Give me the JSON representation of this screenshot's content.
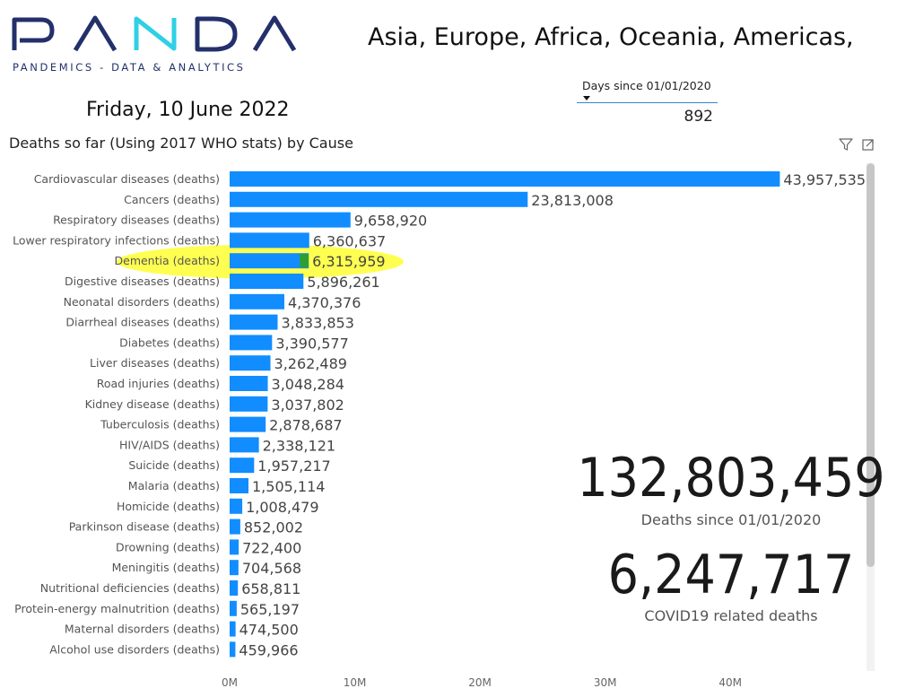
{
  "brand": {
    "letters": [
      "P",
      "A",
      "N",
      "D",
      "A"
    ],
    "tagline": "PANDEMICS - DATA & ANALYTICS",
    "primary_color": "#23306b",
    "accent_color": "#2fd0e6"
  },
  "header": {
    "regions": "Asia, Europe, Africa, Oceania, Americas,",
    "date": "Friday, 10 June 2022"
  },
  "slicer": {
    "label": "Days since 01/01/2020",
    "value": "892"
  },
  "visual": {
    "filter_icon": "filter-icon",
    "focus_icon": "focus-mode-icon"
  },
  "kpis": [
    {
      "value": "132,803,459",
      "label": "Deaths since 01/01/2020"
    },
    {
      "value": "6,247,717",
      "label": "COVID19 related deaths"
    }
  ],
  "chart_data": {
    "type": "bar",
    "orientation": "horizontal",
    "title": "Deaths so far (Using 2017 WHO stats) by Cause",
    "bar_color": "#118dff",
    "highlight_color": "#ffff33",
    "highlighted_category": "Dementia (deaths)",
    "xlim": [
      0,
      44000000
    ],
    "x_ticks": [
      0,
      10000000,
      20000000,
      30000000,
      40000000
    ],
    "x_tick_labels": [
      "0M",
      "10M",
      "20M",
      "30M",
      "40M"
    ],
    "categories": [
      "Cardiovascular diseases (deaths)",
      "Cancers (deaths)",
      "Respiratory diseases (deaths)",
      "Lower respiratory infections (deaths)",
      "Dementia (deaths)",
      "Digestive diseases (deaths)",
      "Neonatal disorders (deaths)",
      "Diarrheal diseases (deaths)",
      "Diabetes (deaths)",
      "Liver diseases (deaths)",
      "Road injuries (deaths)",
      "Kidney disease (deaths)",
      "Tuberculosis (deaths)",
      "HIV/AIDS (deaths)",
      "Suicide (deaths)",
      "Malaria (deaths)",
      "Homicide (deaths)",
      "Parkinson disease (deaths)",
      "Drowning (deaths)",
      "Meningitis (deaths)",
      "Nutritional deficiencies (deaths)",
      "Protein-energy malnutrition (deaths)",
      "Maternal disorders (deaths)",
      "Alcohol use disorders (deaths)"
    ],
    "values": [
      43957535,
      23813008,
      9658920,
      6360637,
      6315959,
      5896261,
      4370376,
      3833853,
      3390577,
      3262489,
      3048284,
      3037802,
      2878687,
      2338121,
      1957217,
      1505114,
      1008479,
      852002,
      722400,
      704568,
      658811,
      565197,
      474500,
      459966
    ],
    "value_labels": [
      "43,957,535",
      "23,813,008",
      "9,658,920",
      "6,360,637",
      "6,315,959",
      "5,896,261",
      "4,370,376",
      "3,833,853",
      "3,390,577",
      "3,262,489",
      "3,048,284",
      "3,037,802",
      "2,878,687",
      "2,338,121",
      "1,957,217",
      "1,505,114",
      "1,008,479",
      "852,002",
      "722,400",
      "704,568",
      "658,811",
      "565,197",
      "474,500",
      "459,966"
    ]
  }
}
